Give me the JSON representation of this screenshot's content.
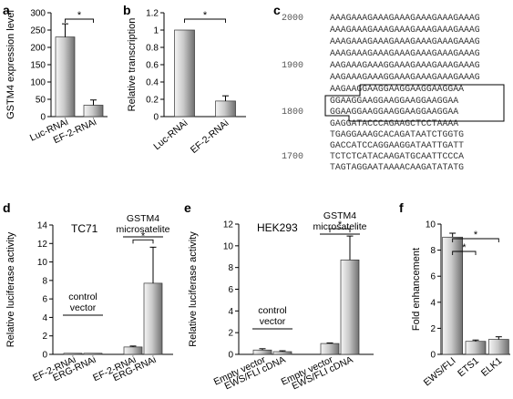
{
  "figure": {
    "colors": {
      "bar_light": "#f5f5f5",
      "bar_mid": "#c9c9c9",
      "bar_dark": "#6f6f6f",
      "axis": "#000000"
    }
  },
  "chart_data": [
    {
      "panel": "a",
      "type": "bar",
      "categories": [
        "Luc-RNAi",
        "EF-2-RNAi"
      ],
      "values": [
        230,
        33
      ],
      "errors": [
        38,
        15
      ],
      "ylabel": "GSTM4 expression level",
      "ylim": [
        0,
        300
      ],
      "yticks": [
        0,
        50,
        100,
        150,
        200,
        250,
        300
      ],
      "signif": [
        {
          "pair": [
            0,
            1
          ],
          "label": "*"
        }
      ]
    },
    {
      "panel": "b",
      "type": "bar",
      "categories": [
        "Luc-RNAi",
        "EF-2-RNAi"
      ],
      "values": [
        1.0,
        0.18
      ],
      "errors": [
        0,
        0.06
      ],
      "ylabel": "Relative transcription",
      "ylim": [
        0,
        1.2
      ],
      "yticks": [
        "0",
        "0.2",
        "0.4",
        "0.6",
        "0.8",
        "1",
        "1.2"
      ],
      "signif": [
        {
          "pair": [
            0,
            1
          ],
          "label": "*"
        }
      ]
    },
    {
      "panel": "d",
      "type": "bar",
      "title": "TC71",
      "categories": [
        "EF-2-RNAi",
        "ERG-RNAi",
        "EF-2-RNAi",
        "ERG-RNAi"
      ],
      "values": [
        0.02,
        0.02,
        0.8,
        7.7
      ],
      "errors": [
        0,
        0,
        0.1,
        3.9
      ],
      "ylabel": "Relative luciferase activity",
      "ylim": [
        0,
        14
      ],
      "yticks": [
        0,
        2,
        4,
        6,
        8,
        10,
        12,
        14
      ],
      "annotations": [
        {
          "text": [
            "control",
            "vector"
          ],
          "over": [
            0,
            1
          ]
        },
        {
          "text": [
            "GSTM4",
            "microsatelite"
          ],
          "over": [
            2,
            3
          ]
        }
      ],
      "signif": [
        {
          "pair": [
            2,
            3
          ],
          "label": "*"
        }
      ]
    },
    {
      "panel": "e",
      "type": "bar",
      "title": "HEK293",
      "categories": [
        "Empty vector",
        "EWS/FLI cDNA",
        "Empty vector",
        "EWS/FLI cDNA"
      ],
      "values": [
        0.4,
        0.25,
        1.0,
        8.7
      ],
      "errors": [
        0.12,
        0.08,
        0.05,
        2.2
      ],
      "ylabel": "Relative luciferase activity",
      "ylim": [
        0,
        12
      ],
      "yticks": [
        0,
        2,
        4,
        6,
        8,
        10,
        12
      ],
      "annotations": [
        {
          "text": [
            "control",
            "vector"
          ],
          "over": [
            0,
            1
          ]
        },
        {
          "text": [
            "GSTM4",
            "microsatelite"
          ],
          "over": [
            2,
            3
          ]
        }
      ],
      "signif": [
        {
          "pair": [
            2,
            3
          ],
          "label": "*"
        }
      ]
    },
    {
      "panel": "f",
      "type": "bar",
      "categories": [
        "EWS/FLI",
        "ETS1",
        "ELK1"
      ],
      "values": [
        9.0,
        1.0,
        1.15
      ],
      "errors": [
        0.3,
        0.1,
        0.2
      ],
      "ylabel": "Fold enhancement",
      "ylim": [
        0,
        10
      ],
      "yticks": [
        0,
        2,
        4,
        6,
        8,
        10
      ],
      "signif": [
        {
          "pair": [
            0,
            1
          ],
          "label": "*"
        },
        {
          "pair": [
            0,
            2
          ],
          "label": "*"
        }
      ]
    }
  ],
  "sequence_panel": {
    "panel": "c",
    "positions": [
      "2000",
      "1900",
      "1800",
      "1700"
    ],
    "lines": [
      "AAAGAAAGAAAGAAAGAAAGAAAGAAAG",
      "AAAGAAAGAAAGAAAGAAAGAAAGAAAG",
      "AAAGAAAGAAAGAAAGAAAGAAAGAAAG",
      "AAAGAAAGAAAGAAAGAAAGAAAGAAAG",
      "AAGAAAGAAAGGAAAGAAAGAAAGAAAG",
      "AAGAAAGAAAGGAAAGAAAGAAAGAAAG",
      "AAGAAGGAAGGAAGGAAGGAAGGAA",
      "GGAAGGAAGGAAGGAAGGAAGGAA",
      "GGAAGGAAGGAAGGAAGGAAGGAA",
      "GAGGATACCCAGAAGCTCCTAAAA",
      "TGAGGAAAGCACAGATAATCTGGTG",
      "GACCATCCAGGAAGGATAATTGATT",
      "TCTCTCATACAAGATGCAATTCCCA",
      "TAGTAGGAATAAAACAAGATATATG"
    ]
  }
}
